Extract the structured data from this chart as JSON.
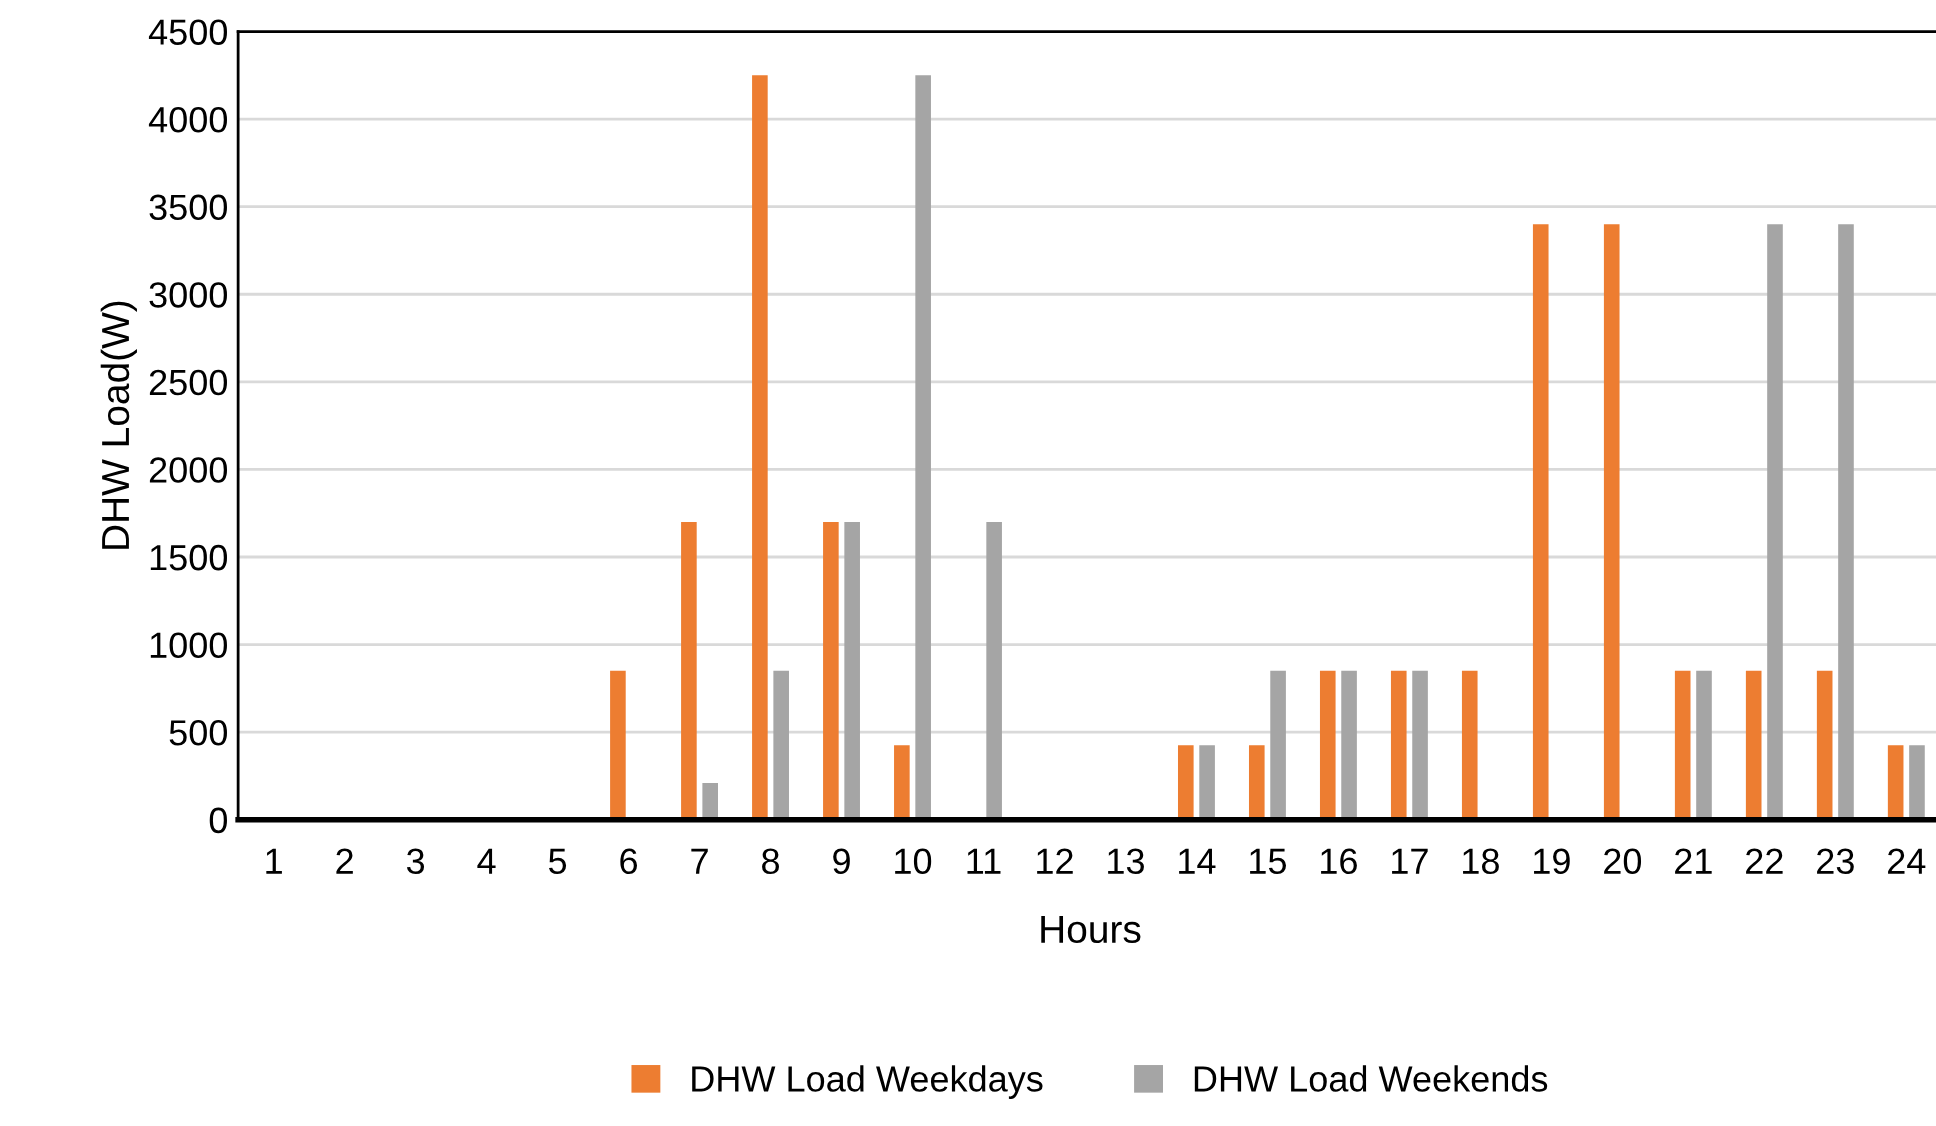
{
  "chart_data": {
    "type": "bar",
    "xlabel": "Hours",
    "ylabel": "DHW Load(W)",
    "categories": [
      "1",
      "2",
      "3",
      "4",
      "5",
      "6",
      "7",
      "8",
      "9",
      "10",
      "11",
      "12",
      "13",
      "14",
      "15",
      "16",
      "17",
      "18",
      "19",
      "20",
      "21",
      "22",
      "23",
      "24"
    ],
    "series": [
      {
        "name": "DHW Load Weekdays",
        "color": "#ed7d31",
        "values": [
          0,
          0,
          0,
          0,
          0,
          850,
          1700,
          4250,
          1700,
          425,
          0,
          0,
          0,
          425,
          425,
          850,
          850,
          850,
          3400,
          3400,
          850,
          850,
          850,
          425
        ]
      },
      {
        "name": "DHW Load Weekends",
        "color": "#a5a5a5",
        "values": [
          0,
          0,
          0,
          0,
          0,
          0,
          210,
          850,
          1700,
          4250,
          1700,
          0,
          0,
          425,
          850,
          850,
          850,
          0,
          0,
          0,
          850,
          3400,
          3400,
          425
        ]
      }
    ],
    "ylim": [
      0,
      4500
    ],
    "yticks": [
      0,
      500,
      1000,
      1500,
      2000,
      2500,
      3000,
      3500,
      4000,
      4500
    ],
    "grid": "y",
    "legend": "bottom"
  }
}
